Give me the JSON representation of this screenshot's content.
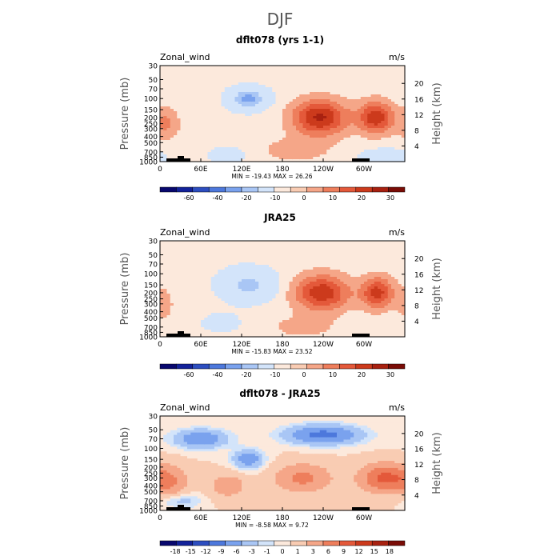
{
  "figure": {
    "title": "DJF"
  },
  "colors": {
    "wind16": [
      "#08086e",
      "#13229a",
      "#2d4ec0",
      "#4d78dc",
      "#7aa2ee",
      "#a9c6f5",
      "#d3e4fa",
      "#fce9dc",
      "#f9ccb3",
      "#f5a688",
      "#ee7e5c",
      "#e4593a",
      "#cc3a1c",
      "#a82110",
      "#7a0c06"
    ],
    "diff16": [
      "#08086e",
      "#13229a",
      "#2d4ec0",
      "#4d78dc",
      "#7aa2ee",
      "#a9c6f5",
      "#d3e4fa",
      "#fce9dc",
      "#f9ccb3",
      "#f5a688",
      "#ee7e5c",
      "#e4593a",
      "#cc3a1c",
      "#a82110",
      "#7a0c06"
    ]
  },
  "chart_data": [
    {
      "type": "contour",
      "title": "dflt078 (yrs 1-1)",
      "left_label": "Zonal_wind",
      "units": "m/s",
      "ylabel": "Pressure (mb)",
      "ylabel_right": "Height (km)",
      "xlim": [
        0,
        360
      ],
      "ylim_pressure": [
        1000,
        30
      ],
      "x_ticks": [
        "0",
        "60E",
        "120E",
        "180",
        "120W",
        "60W"
      ],
      "y_ticks": [
        "30",
        "50",
        "70",
        "100",
        "150",
        "200",
        "250",
        "300",
        "400",
        "500",
        "700",
        "850",
        "1000"
      ],
      "height_ticks": [
        "20",
        "16",
        "12",
        "8",
        "4"
      ],
      "stats_text": "MIN = -19.43  MAX =  26.26",
      "min": -19.43,
      "max": 26.26,
      "colorbar_labels": [
        "-60",
        "-40",
        "-20",
        "-10",
        "0",
        "10",
        "20",
        "30"
      ],
      "field": {
        "background": 2,
        "features": [
          {
            "lon": 235,
            "p": 200,
            "amp": 24,
            "wlon": 40,
            "wz": 4.5
          },
          {
            "lon": 318,
            "p": 200,
            "amp": 22,
            "wlon": 26,
            "wz": 4.0
          },
          {
            "lon": 130,
            "p": 100,
            "amp": -19,
            "wlon": 28,
            "wz": 2.8
          },
          {
            "lon": 10,
            "p": 250,
            "amp": 9,
            "wlon": 18,
            "wz": 4.0
          },
          {
            "lon": 200,
            "p": 650,
            "amp": 6,
            "wlon": 50,
            "wz": 3.0
          },
          {
            "lon": 100,
            "p": 800,
            "amp": -5,
            "wlon": 30,
            "wz": 2.5
          },
          {
            "lon": 330,
            "p": 850,
            "amp": -6,
            "wlon": 40,
            "wz": 2.5
          }
        ]
      }
    },
    {
      "type": "contour",
      "title": "JRA25",
      "left_label": "Zonal_wind",
      "units": "m/s",
      "ylabel": "Pressure (mb)",
      "ylabel_right": "Height (km)",
      "xlim": [
        0,
        360
      ],
      "ylim_pressure": [
        1000,
        30
      ],
      "x_ticks": [
        "0",
        "60E",
        "120E",
        "180",
        "120W",
        "60W"
      ],
      "y_ticks": [
        "30",
        "50",
        "70",
        "100",
        "150",
        "200",
        "250",
        "300",
        "400",
        "500",
        "700",
        "850",
        "1000"
      ],
      "height_ticks": [
        "20",
        "16",
        "12",
        "8",
        "4"
      ],
      "stats_text": "MIN = -15.83  MAX =  23.52",
      "min": -15.83,
      "max": 23.52,
      "colorbar_labels": [
        "-60",
        "-40",
        "-20",
        "-10",
        "0",
        "10",
        "20",
        "30"
      ],
      "field": {
        "background": 2,
        "features": [
          {
            "lon": 238,
            "p": 200,
            "amp": 22,
            "wlon": 40,
            "wz": 4.5
          },
          {
            "lon": 320,
            "p": 200,
            "amp": 20,
            "wlon": 24,
            "wz": 4.0
          },
          {
            "lon": 130,
            "p": 150,
            "amp": -14,
            "wlon": 40,
            "wz": 4.0
          },
          {
            "lon": 5,
            "p": 300,
            "amp": 6,
            "wlon": 15,
            "wz": 4.0
          },
          {
            "lon": 90,
            "p": 600,
            "amp": -4,
            "wlon": 35,
            "wz": 3.0
          },
          {
            "lon": 210,
            "p": 700,
            "amp": 5,
            "wlon": 50,
            "wz": 3.0
          }
        ]
      }
    },
    {
      "type": "contour",
      "title": "dflt078 - JRA25",
      "left_label": "Zonal_wind",
      "units": "m/s",
      "ylabel": "Pressure (mb)",
      "ylabel_right": "Height (km)",
      "xlim": [
        0,
        360
      ],
      "ylim_pressure": [
        1000,
        30
      ],
      "x_ticks": [
        "0",
        "60E",
        "120E",
        "180",
        "120W",
        "60W"
      ],
      "y_ticks": [
        "30",
        "50",
        "70",
        "100",
        "150",
        "200",
        "250",
        "300",
        "400",
        "500",
        "700",
        "850",
        "1000"
      ],
      "height_ticks": [
        "20",
        "16",
        "12",
        "8",
        "4"
      ],
      "stats_text": "MIN = -8.58  MAX =   9.72",
      "min": -8.58,
      "max": 9.72,
      "colorbar_labels": [
        "-18",
        "-15",
        "-12",
        "-9",
        "-6",
        "-3",
        "-1",
        "0",
        "1",
        "3",
        "6",
        "9",
        "12",
        "15",
        "18"
      ],
      "field": {
        "background": 1,
        "features": [
          {
            "lon": 240,
            "p": 60,
            "amp": -8,
            "wlon": 55,
            "wz": 2.5
          },
          {
            "lon": 60,
            "p": 70,
            "amp": -6,
            "wlon": 40,
            "wz": 2.5
          },
          {
            "lon": 130,
            "p": 150,
            "amp": -6,
            "wlon": 22,
            "wz": 2.5
          },
          {
            "lon": 330,
            "p": 300,
            "amp": 9,
            "wlon": 35,
            "wz": 3.5
          },
          {
            "lon": 210,
            "p": 300,
            "amp": 6,
            "wlon": 40,
            "wz": 3.5
          },
          {
            "lon": 15,
            "p": 350,
            "amp": 5,
            "wlon": 25,
            "wz": 4.0
          },
          {
            "lon": 100,
            "p": 400,
            "amp": 4,
            "wlon": 25,
            "wz": 3.0
          },
          {
            "lon": 30,
            "p": 700,
            "amp": -3,
            "wlon": 30,
            "wz": 2.0
          }
        ]
      }
    }
  ]
}
